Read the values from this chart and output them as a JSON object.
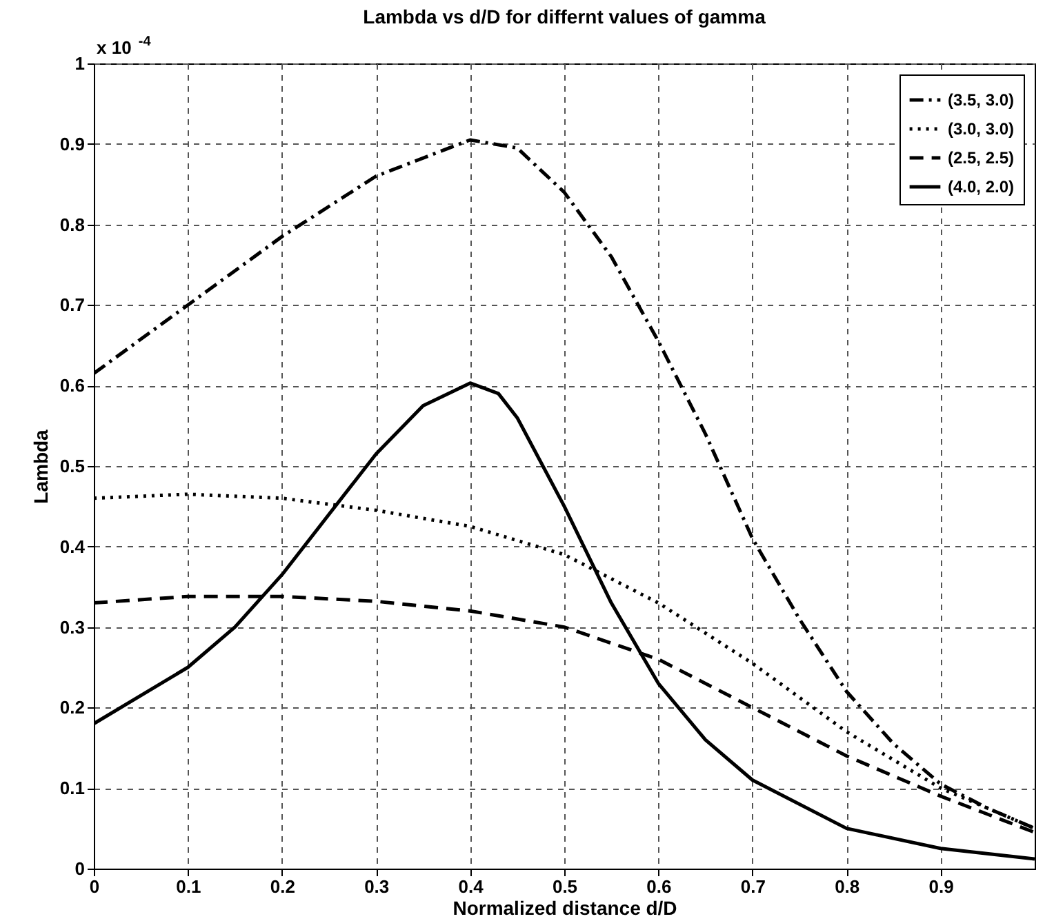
{
  "chart_data": {
    "type": "line",
    "title": "Lambda vs d/D for differnt values of gamma",
    "xlabel": "Normalized distance d/D",
    "ylabel": "Lambda",
    "annotations": [
      "x 10$^{-4}$"
    ],
    "xlim": [
      0,
      1
    ],
    "xticks": [
      0,
      0.1,
      0.2,
      0.3,
      0.4,
      0.5,
      0.6,
      0.7,
      0.8,
      0.9
    ],
    "ylim": [
      0,
      1
    ],
    "yticks": [
      0,
      0.1,
      0.2,
      0.3,
      0.4,
      0.5,
      0.6,
      0.7,
      0.8,
      0.9,
      1
    ],
    "grid": true,
    "legend": "top right",
    "marker": "none",
    "series": [
      {
        "name": "(3.5, 3.0)",
        "color": "#000000",
        "line_style": "dashdot",
        "x": [
          0,
          0.1,
          0.2,
          0.3,
          0.4,
          0.45,
          0.5,
          0.55,
          0.6,
          0.65,
          0.7,
          0.75,
          0.8,
          0.85,
          0.9,
          0.95,
          1.0
        ],
        "values": [
          0.615,
          0.7,
          0.785,
          0.86,
          0.905,
          0.895,
          0.84,
          0.76,
          0.655,
          0.54,
          0.41,
          0.31,
          0.22,
          0.155,
          0.105,
          0.075,
          0.05
        ]
      },
      {
        "name": "(3.0, 3.0)",
        "color": "#000000",
        "line_style": "dotted",
        "x": [
          0,
          0.1,
          0.2,
          0.3,
          0.4,
          0.5,
          0.6,
          0.7,
          0.8,
          0.9,
          1.0
        ],
        "values": [
          0.46,
          0.465,
          0.46,
          0.445,
          0.425,
          0.39,
          0.33,
          0.255,
          0.17,
          0.1,
          0.05
        ]
      },
      {
        "name": "(2.5, 2.5)",
        "color": "#000000",
        "line_style": "dashed",
        "x": [
          0,
          0.1,
          0.2,
          0.3,
          0.4,
          0.5,
          0.6,
          0.7,
          0.8,
          0.9,
          1.0
        ],
        "values": [
          0.33,
          0.338,
          0.338,
          0.332,
          0.32,
          0.3,
          0.26,
          0.2,
          0.14,
          0.09,
          0.045
        ]
      },
      {
        "name": "(4.0, 2.0)",
        "color": "#000000",
        "line_style": "solid",
        "x": [
          0,
          0.1,
          0.15,
          0.2,
          0.25,
          0.3,
          0.35,
          0.4,
          0.43,
          0.45,
          0.5,
          0.55,
          0.6,
          0.65,
          0.7,
          0.8,
          0.9,
          1.0
        ],
        "values": [
          0.18,
          0.25,
          0.3,
          0.365,
          0.44,
          0.515,
          0.575,
          0.603,
          0.59,
          0.56,
          0.45,
          0.33,
          0.23,
          0.16,
          0.11,
          0.05,
          0.025,
          0.012
        ]
      }
    ]
  }
}
